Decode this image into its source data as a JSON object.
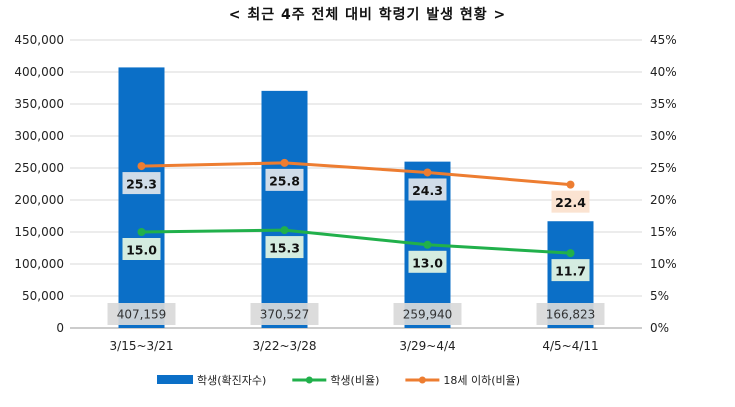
{
  "chart_data": {
    "type": "bar",
    "title": "< 최근 4주 전체 대비 학령기 발생 현황 >",
    "categories": [
      "3/15~3/21",
      "3/22~3/28",
      "3/29~4/4",
      "4/5~4/11"
    ],
    "series": [
      {
        "name": "학생(확진자수)",
        "type": "bar",
        "axis": "left",
        "values": [
          407159,
          370527,
          259940,
          166823
        ],
        "labels": [
          "407,159",
          "370,527",
          "259,940",
          "166,823"
        ],
        "color": "#0B6FC7"
      },
      {
        "name": "학생(비율)",
        "type": "line",
        "axis": "right",
        "values": [
          15.0,
          15.3,
          13.0,
          11.7
        ],
        "labels": [
          "15.0",
          "15.3",
          "13.0",
          "11.7"
        ],
        "color": "#21B04B"
      },
      {
        "name": "18세 이하(비율)",
        "type": "line",
        "axis": "right",
        "values": [
          25.3,
          25.8,
          24.3,
          22.4
        ],
        "labels": [
          "25.3",
          "25.8",
          "24.3",
          "22.4"
        ],
        "color": "#ED7D31"
      }
    ],
    "y_left": {
      "range": [
        0,
        450000
      ],
      "ticks": [
        "0",
        "50,000",
        "100,000",
        "150,000",
        "200,000",
        "250,000",
        "300,000",
        "350,000",
        "400,000",
        "450,000"
      ]
    },
    "y_right": {
      "range": [
        0,
        45
      ],
      "ticks": [
        "0%",
        "5%",
        "10%",
        "15%",
        "20%",
        "25%",
        "30%",
        "35%",
        "40%",
        "45%"
      ]
    },
    "grid": true,
    "legend_position": "bottom"
  }
}
